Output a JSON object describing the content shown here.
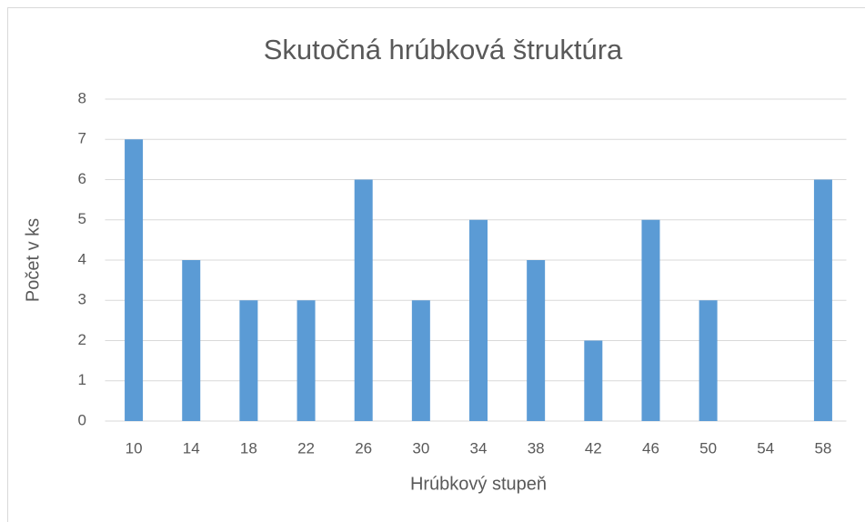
{
  "chart_data": {
    "type": "bar",
    "title": "Skutočná hrúbková štruktúra",
    "x_label": "Hrúbkový stupeň",
    "y_label": "Počet v ks",
    "categories": [
      "10",
      "14",
      "18",
      "22",
      "26",
      "30",
      "34",
      "38",
      "42",
      "46",
      "50",
      "54",
      "58"
    ],
    "values": [
      7,
      4,
      3,
      3,
      6,
      3,
      5,
      4,
      2,
      5,
      3,
      0,
      6
    ],
    "color": "#5b9bd5",
    "ylim": [
      0,
      8
    ],
    "yticks": [
      0,
      1,
      2,
      3,
      4,
      5,
      6,
      7,
      8
    ],
    "grid": true
  }
}
